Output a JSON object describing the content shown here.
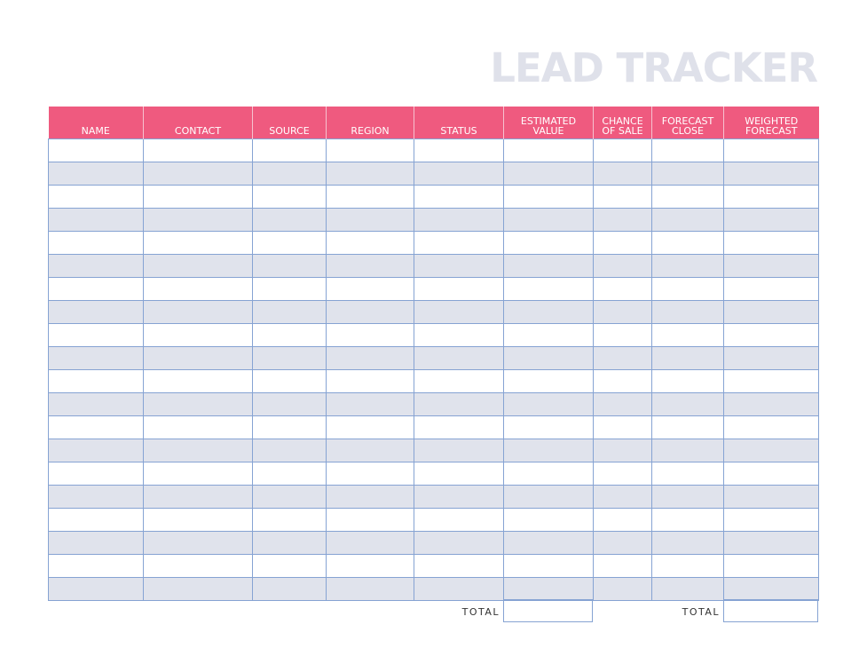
{
  "header": {
    "title": "LEAD TRACKER"
  },
  "table": {
    "columns": [
      "NAME",
      "CONTACT",
      "SOURCE",
      "REGION",
      "STATUS",
      "ESTIMATED VALUE",
      "CHANCE OF SALE",
      "FORECAST CLOSE",
      "WEIGHTED FORECAST"
    ],
    "totals": [
      "TOTAL",
      "TOTAL"
    ]
  }
}
